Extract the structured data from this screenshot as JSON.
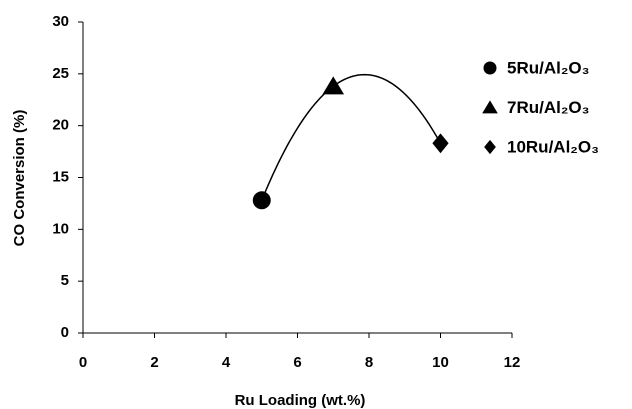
{
  "chart_data": {
    "type": "scatter",
    "x_label": "Ru Loading (wt.%)",
    "y_label": "CO Conversion (%)",
    "xlim": [
      0,
      12
    ],
    "xticks": [
      0,
      2,
      4,
      6,
      8,
      10,
      12
    ],
    "ylim": [
      0,
      30
    ],
    "yticks": [
      0,
      5,
      10,
      15,
      20,
      25,
      30
    ],
    "grid": false,
    "legend": "right",
    "trendline": "polynomial",
    "series": [
      {
        "name": "5Ru/Al₂O₃",
        "color": "#000000",
        "marker": "circle",
        "x": [
          5
        ],
        "values": [
          12.8
        ]
      },
      {
        "name": "7Ru/Al₂O₃",
        "color": "#000000",
        "marker": "triangle",
        "x": [
          7
        ],
        "values": [
          23.8
        ]
      },
      {
        "name": "10Ru/Al₂O₃",
        "color": "#000000",
        "marker": "diamond",
        "x": [
          10
        ],
        "values": [
          18.3
        ]
      }
    ]
  }
}
